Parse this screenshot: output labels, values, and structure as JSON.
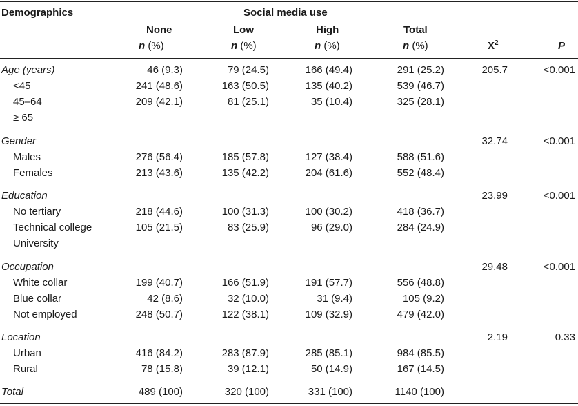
{
  "header": {
    "demographics": "Demographics",
    "social_media_use": "Social media use",
    "col_none": "None",
    "col_low": "Low",
    "col_high": "High",
    "col_total": "Total",
    "n_letter": "n",
    "pct": " (%)",
    "chi_base": "X",
    "chi_sup": "2",
    "p": "P"
  },
  "rows": [
    {
      "label": "Age (years)",
      "italic": true,
      "none": "46 (9.3)",
      "low": "79 (24.5)",
      "high": "166 (49.4)",
      "total": "291 (25.2)",
      "chi": "205.7",
      "p": "<0.001"
    },
    {
      "label": "<45",
      "italic": false,
      "none": "241 (48.6)",
      "low": "163 (50.5)",
      "high": "135 (40.2)",
      "total": "539 (46.7)",
      "chi": "",
      "p": ""
    },
    {
      "label": "45–64",
      "italic": false,
      "none": "209 (42.1)",
      "low": "81 (25.1)",
      "high": "35 (10.4)",
      "total": "325 (28.1)",
      "chi": "",
      "p": ""
    },
    {
      "label": "≥ 65",
      "italic": false,
      "none": "",
      "low": "",
      "high": "",
      "total": "",
      "chi": "",
      "p": ""
    },
    {
      "label": "Gender",
      "italic": true,
      "none": "",
      "low": "",
      "high": "",
      "total": "",
      "chi": "32.74",
      "p": "<0.001"
    },
    {
      "label": "Males",
      "italic": false,
      "none": "276 (56.4)",
      "low": "185 (57.8)",
      "high": "127 (38.4)",
      "total": "588 (51.6)",
      "chi": "",
      "p": ""
    },
    {
      "label": "Females",
      "italic": false,
      "none": "213 (43.6)",
      "low": "135 (42.2)",
      "high": "204 (61.6)",
      "total": "552 (48.4)",
      "chi": "",
      "p": ""
    },
    {
      "label": "Education",
      "italic": true,
      "none": "",
      "low": "",
      "high": "",
      "total": "",
      "chi": "23.99",
      "p": "<0.001"
    },
    {
      "label": "No tertiary",
      "italic": false,
      "none": "218 (44.6)",
      "low": "100 (31.3)",
      "high": "100 (30.2)",
      "total": "418 (36.7)",
      "chi": "",
      "p": ""
    },
    {
      "label": "Technical college",
      "italic": false,
      "none": "105 (21.5)",
      "low": "83 (25.9)",
      "high": "96 (29.0)",
      "total": "284 (24.9)",
      "chi": "",
      "p": ""
    },
    {
      "label": "University",
      "italic": false,
      "none": "",
      "low": "",
      "high": "",
      "total": "",
      "chi": "",
      "p": ""
    },
    {
      "label": "Occupation",
      "italic": true,
      "none": "",
      "low": "",
      "high": "",
      "total": "",
      "chi": "29.48",
      "p": "<0.001"
    },
    {
      "label": "White collar",
      "italic": false,
      "none": "199 (40.7)",
      "low": "166 (51.9)",
      "high": "191 (57.7)",
      "total": "556 (48.8)",
      "chi": "",
      "p": ""
    },
    {
      "label": "Blue collar",
      "italic": false,
      "none": "42 (8.6)",
      "low": "32 (10.0)",
      "high": "31 (9.4)",
      "total": "105 (9.2)",
      "chi": "",
      "p": ""
    },
    {
      "label": "Not employed",
      "italic": false,
      "none": "248 (50.7)",
      "low": "122 (38.1)",
      "high": "109 (32.9)",
      "total": "479 (42.0)",
      "chi": "",
      "p": ""
    },
    {
      "label": "Location",
      "italic": true,
      "none": "",
      "low": "",
      "high": "",
      "total": "",
      "chi": "2.19",
      "p": "0.33"
    },
    {
      "label": "Urban",
      "italic": false,
      "none": "416 (84.2)",
      "low": "283 (87.9)",
      "high": "285 (85.1)",
      "total": "984 (85.5)",
      "chi": "",
      "p": ""
    },
    {
      "label": "Rural",
      "italic": false,
      "none": "78 (15.8)",
      "low": "39 (12.1)",
      "high": "50 (14.9)",
      "total": "167 (14.5)",
      "chi": "",
      "p": ""
    },
    {
      "label": "Total",
      "italic": true,
      "none": "489 (100)",
      "low": "320 (100)",
      "high": "331 (100)",
      "total": "1140 (100)",
      "chi": "",
      "p": ""
    }
  ]
}
